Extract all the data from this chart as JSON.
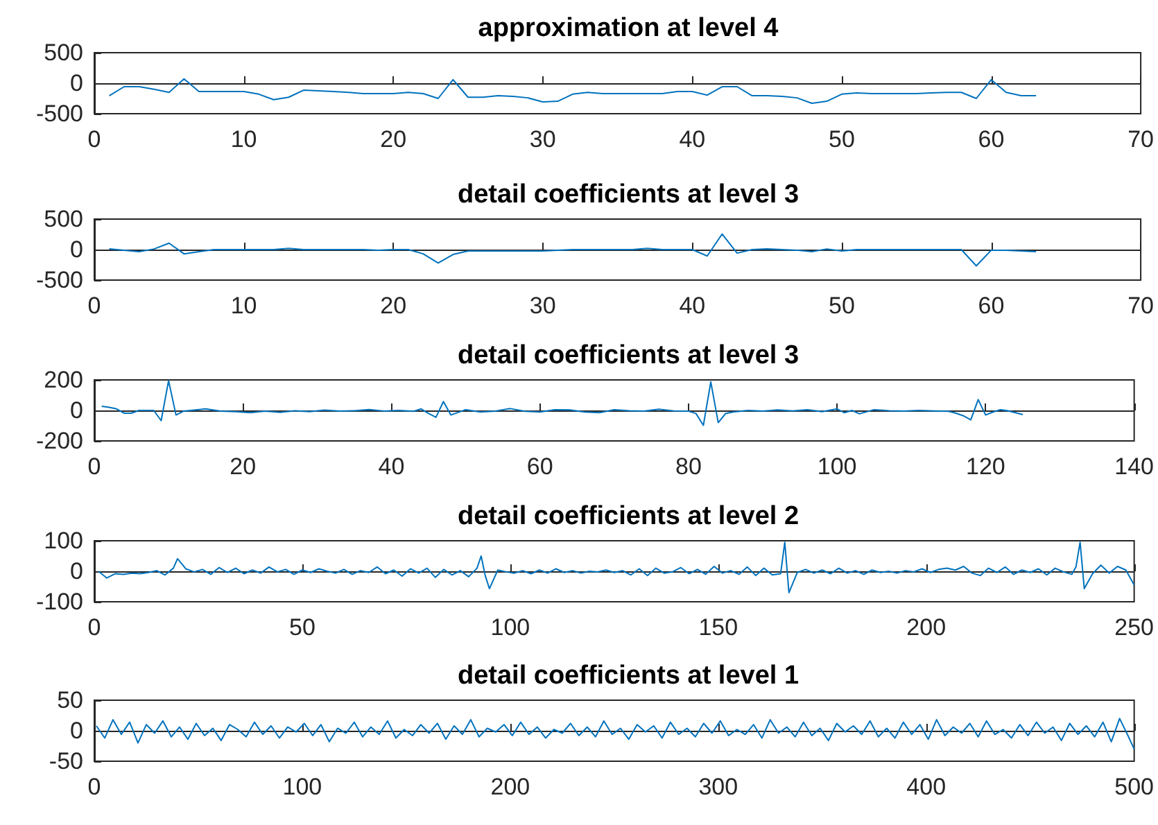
{
  "chart_data": [
    {
      "type": "line",
      "title": "approximation at level 4",
      "color": "#0072bd",
      "xlim": [
        0,
        70
      ],
      "xticks": [
        0,
        10,
        20,
        30,
        40,
        50,
        60,
        70
      ],
      "ylim": [
        -500,
        500
      ],
      "yticks": [
        -500,
        0,
        500
      ],
      "x": [
        1,
        2,
        3,
        4,
        5,
        6,
        7,
        8,
        9,
        10,
        11,
        12,
        13,
        14,
        15,
        16,
        17,
        18,
        19,
        20,
        21,
        22,
        23,
        24,
        25,
        26,
        27,
        28,
        29,
        30,
        31,
        32,
        33,
        34,
        35,
        36,
        37,
        38,
        39,
        40,
        41,
        42,
        43,
        44,
        45,
        46,
        47,
        48,
        49,
        50,
        51,
        52,
        53,
        54,
        55,
        56,
        57,
        58,
        59,
        60,
        61,
        62,
        63
      ],
      "values": [
        -205,
        -57,
        -57,
        -100,
        -150,
        70,
        -137,
        -137,
        -137,
        -137,
        -180,
        -270,
        -230,
        -115,
        -125,
        -137,
        -150,
        -170,
        -170,
        -170,
        -150,
        -170,
        -250,
        57,
        -230,
        -230,
        -205,
        -215,
        -240,
        -307,
        -296,
        -180,
        -150,
        -170,
        -170,
        -170,
        -170,
        -170,
        -137,
        -137,
        -195,
        -57,
        -57,
        -205,
        -205,
        -215,
        -240,
        -330,
        -296,
        -180,
        -160,
        -170,
        -170,
        -170,
        -170,
        -160,
        -150,
        -150,
        -250,
        57,
        -150,
        -205,
        -205
      ]
    },
    {
      "type": "line",
      "title": "detail coefficients at level 3",
      "color": "#0072bd",
      "xlim": [
        0,
        70
      ],
      "xticks": [
        0,
        10,
        20,
        30,
        40,
        50,
        60,
        70
      ],
      "ylim": [
        -500,
        500
      ],
      "yticks": [
        -500,
        0,
        500
      ],
      "x": [
        1,
        2,
        3,
        4,
        5,
        6,
        7,
        8,
        9,
        10,
        11,
        12,
        13,
        14,
        15,
        16,
        17,
        18,
        19,
        20,
        21,
        22,
        23,
        24,
        25,
        26,
        27,
        28,
        29,
        30,
        31,
        32,
        33,
        34,
        35,
        36,
        37,
        38,
        39,
        40,
        41,
        42,
        43,
        44,
        45,
        46,
        47,
        48,
        49,
        50,
        51,
        52,
        53,
        54,
        55,
        56,
        57,
        58,
        59,
        60,
        61,
        62,
        63
      ],
      "values": [
        10,
        -10,
        -35,
        10,
        105,
        -70,
        -35,
        0,
        0,
        0,
        0,
        0,
        20,
        0,
        0,
        0,
        0,
        0,
        -10,
        0,
        0,
        -70,
        -220,
        -80,
        -23,
        -23,
        -23,
        -23,
        -23,
        -23,
        -10,
        0,
        0,
        0,
        0,
        0,
        20,
        0,
        0,
        0,
        -105,
        255,
        -58,
        0,
        10,
        0,
        -10,
        -35,
        10,
        -23,
        0,
        0,
        0,
        0,
        0,
        0,
        0,
        0,
        -267,
        -10,
        -10,
        -23,
        -35
      ]
    },
    {
      "type": "line",
      "title": "detail coefficients at level 3",
      "color": "#0072bd",
      "xlim": [
        0,
        140
      ],
      "xticks": [
        0,
        20,
        40,
        60,
        80,
        100,
        120,
        140
      ],
      "ylim": [
        -200,
        200
      ],
      "yticks": [
        -200,
        0,
        200
      ],
      "x": [
        1,
        2,
        3,
        4,
        5,
        6,
        7,
        8,
        9,
        10,
        11,
        12,
        13,
        15,
        17,
        19,
        21,
        23,
        25,
        27,
        29,
        31,
        33,
        35,
        37,
        39,
        41,
        43,
        44,
        45,
        46,
        47,
        48,
        50,
        52,
        54,
        56,
        58,
        60,
        62,
        64,
        66,
        68,
        70,
        72,
        74,
        76,
        78,
        80,
        81,
        82,
        83,
        84,
        85,
        86,
        88,
        90,
        92,
        94,
        96,
        98,
        100,
        101,
        102,
        103,
        105,
        107,
        109,
        111,
        113,
        115,
        116,
        117,
        118,
        119,
        120,
        121,
        122,
        123,
        124,
        125
      ],
      "values": [
        27,
        20,
        10,
        -18,
        -18,
        0,
        0,
        0,
        -67,
        195,
        -30,
        -5,
        0,
        10,
        -5,
        -8,
        -15,
        -5,
        -12,
        -2,
        -8,
        2,
        -4,
        -2,
        6,
        -4,
        0,
        -6,
        10,
        -20,
        -45,
        58,
        -30,
        5,
        -10,
        -4,
        12,
        -6,
        -10,
        5,
        3,
        -10,
        -15,
        5,
        -2,
        -5,
        8,
        -3,
        -5,
        -20,
        -98,
        187,
        -80,
        -20,
        -10,
        0,
        -5,
        3,
        -3,
        5,
        -8,
        10,
        -15,
        0,
        -22,
        5,
        -2,
        -4,
        0,
        -3,
        -6,
        -18,
        -35,
        -62,
        71,
        -30,
        -10,
        5,
        -2,
        -15,
        -27
      ]
    },
    {
      "type": "line",
      "title": "detail coefficients at level 2",
      "color": "#0072bd",
      "xlim": [
        0,
        250
      ],
      "xticks": [
        0,
        50,
        100,
        150,
        200,
        250
      ],
      "ylim": [
        -100,
        100
      ],
      "yticks": [
        -100,
        0,
        100
      ],
      "x": [
        1,
        3,
        5,
        7,
        9,
        11,
        13,
        15,
        17,
        19,
        20,
        22,
        24,
        26,
        28,
        30,
        32,
        34,
        36,
        38,
        40,
        42,
        44,
        46,
        48,
        50,
        52,
        54,
        56,
        58,
        60,
        62,
        64,
        66,
        68,
        70,
        72,
        74,
        76,
        78,
        80,
        82,
        84,
        86,
        88,
        90,
        92,
        93,
        94,
        95,
        97,
        99,
        101,
        103,
        105,
        107,
        109,
        111,
        113,
        115,
        117,
        119,
        121,
        123,
        125,
        127,
        129,
        131,
        133,
        135,
        137,
        139,
        141,
        143,
        145,
        147,
        149,
        151,
        153,
        155,
        157,
        159,
        161,
        163,
        165,
        166,
        167,
        169,
        171,
        173,
        175,
        177,
        179,
        181,
        183,
        185,
        187,
        189,
        191,
        193,
        195,
        197,
        199,
        201,
        203,
        205,
        207,
        209,
        211,
        213,
        215,
        217,
        219,
        221,
        223,
        225,
        227,
        229,
        231,
        233,
        235,
        236,
        237,
        238,
        240,
        242,
        244,
        246,
        248,
        250
      ],
      "values": [
        0,
        -22,
        -8,
        -10,
        -6,
        -8,
        -4,
        2,
        -12,
        10,
        41,
        8,
        -2,
        6,
        -10,
        12,
        -4,
        10,
        -8,
        4,
        -6,
        14,
        -2,
        6,
        -10,
        4,
        -4,
        8,
        0,
        -6,
        6,
        -10,
        2,
        -4,
        14,
        -8,
        4,
        -16,
        8,
        -6,
        10,
        -20,
        6,
        -12,
        2,
        -18,
        10,
        50,
        -15,
        -57,
        4,
        -2,
        -6,
        2,
        -8,
        4,
        -6,
        8,
        -4,
        2,
        -6,
        0,
        -2,
        4,
        -4,
        2,
        -12,
        8,
        -14,
        10,
        -6,
        -2,
        12,
        -8,
        6,
        -10,
        16,
        -6,
        2,
        -10,
        14,
        -14,
        10,
        -12,
        -8,
        95,
        -70,
        -4,
        6,
        -6,
        4,
        -8,
        10,
        -6,
        2,
        -10,
        4,
        -4,
        0,
        -6,
        2,
        -2,
        8,
        -4,
        6,
        10,
        4,
        16,
        -6,
        -14,
        10,
        -4,
        14,
        -10,
        4,
        -4,
        8,
        -12,
        10,
        -2,
        -10,
        14,
        95,
        -57,
        -8,
        20,
        -6,
        16,
        4,
        -45
      ]
    },
    {
      "type": "line",
      "title": "detail coefficients at level 1",
      "color": "#0072bd",
      "xlim": [
        0,
        500
      ],
      "xticks": [
        0,
        100,
        200,
        300,
        400,
        500
      ],
      "ylim": [
        -50,
        50
      ],
      "yticks": [
        -50,
        0,
        50
      ],
      "x": [
        1,
        5,
        9,
        13,
        17,
        21,
        25,
        29,
        33,
        37,
        41,
        45,
        49,
        53,
        57,
        61,
        65,
        69,
        73,
        77,
        81,
        85,
        89,
        93,
        97,
        101,
        105,
        109,
        113,
        117,
        121,
        125,
        129,
        133,
        137,
        141,
        145,
        149,
        153,
        157,
        161,
        165,
        169,
        173,
        177,
        181,
        185,
        189,
        193,
        197,
        201,
        205,
        209,
        213,
        217,
        221,
        225,
        229,
        233,
        237,
        241,
        245,
        249,
        253,
        257,
        261,
        265,
        269,
        273,
        277,
        281,
        285,
        289,
        293,
        297,
        301,
        305,
        309,
        313,
        317,
        321,
        325,
        329,
        333,
        337,
        341,
        345,
        349,
        353,
        357,
        361,
        365,
        369,
        373,
        377,
        381,
        385,
        389,
        393,
        397,
        401,
        405,
        409,
        413,
        417,
        421,
        425,
        429,
        433,
        437,
        441,
        445,
        449,
        453,
        457,
        461,
        465,
        469,
        473,
        477,
        481,
        485,
        489,
        493,
        497,
        500
      ],
      "values": [
        8,
        -12,
        18,
        -6,
        14,
        -20,
        10,
        -4,
        16,
        -10,
        6,
        -14,
        12,
        -8,
        4,
        -16,
        10,
        2,
        -10,
        14,
        -6,
        8,
        -12,
        6,
        -2,
        12,
        -8,
        10,
        -18,
        4,
        -4,
        14,
        -10,
        6,
        -6,
        16,
        -12,
        2,
        -8,
        10,
        -4,
        12,
        -14,
        8,
        -6,
        18,
        -10,
        4,
        -2,
        10,
        -8,
        14,
        -6,
        6,
        -12,
        2,
        -4,
        12,
        -8,
        6,
        -10,
        16,
        -6,
        4,
        -14,
        10,
        -2,
        8,
        -12,
        14,
        -6,
        4,
        -10,
        12,
        -4,
        16,
        -8,
        2,
        -6,
        10,
        -12,
        18,
        -4,
        6,
        -10,
        14,
        -8,
        4,
        -16,
        12,
        -2,
        8,
        -6,
        16,
        -10,
        4,
        -12,
        14,
        -6,
        10,
        -14,
        18,
        -8,
        6,
        -4,
        12,
        -10,
        16,
        -6,
        2,
        -12,
        10,
        -8,
        14,
        -4,
        6,
        -16,
        12,
        -6,
        8,
        -10,
        14,
        -18,
        20,
        -8,
        -30
      ]
    }
  ]
}
